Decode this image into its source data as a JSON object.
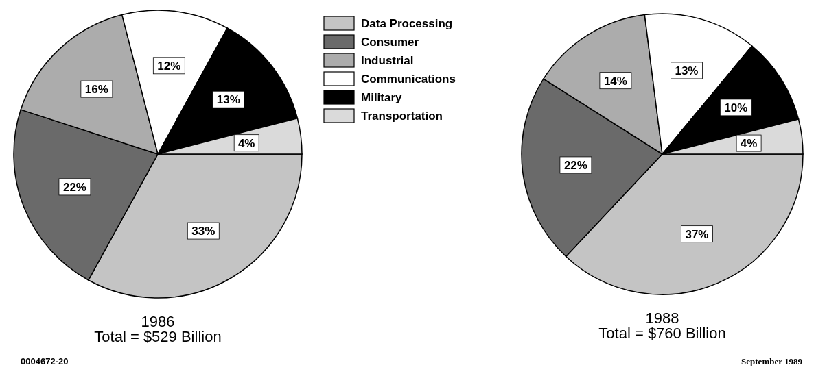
{
  "chart_data": [
    {
      "type": "pie",
      "title": "1986",
      "subtitle": "Total = $529 Billion",
      "categories": [
        "Data Processing",
        "Consumer",
        "Industrial",
        "Communications",
        "Military",
        "Transportation"
      ],
      "values": [
        33,
        22,
        16,
        12,
        13,
        4
      ],
      "value_labels": [
        "33%",
        "22%",
        "16%",
        "12%",
        "13%",
        "4%"
      ],
      "colors": [
        "#c4c4c4",
        "#6a6a6a",
        "#acacac",
        "#ffffff",
        "#000000",
        "#dadada"
      ],
      "legend": "right",
      "annotations": [
        "0004672-20"
      ]
    },
    {
      "type": "pie",
      "title": "1988",
      "subtitle": "Total = $760 Billion",
      "categories": [
        null,
        null,
        null,
        null,
        null,
        null
      ],
      "values": [
        37,
        22,
        14,
        13,
        10,
        4
      ],
      "value_labels": [
        "37%",
        "22%",
        "14%",
        "13%",
        "10%",
        "4%"
      ],
      "colors": [
        "#c4c4c4",
        "#6a6a6a",
        "#acacac",
        "#ffffff",
        "#000000",
        "#dadada"
      ],
      "annotations": [
        "September 1989"
      ]
    }
  ]
}
